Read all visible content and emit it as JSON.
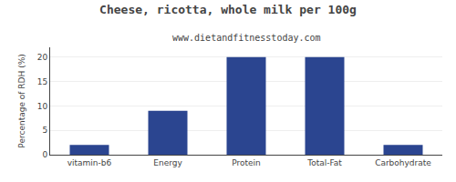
{
  "chart_data": {
    "type": "bar",
    "title": "Cheese, ricotta, whole milk per 100g",
    "subtitle": "www.dietandfitnesstoday.com",
    "categories": [
      "vitamin-b6",
      "Energy",
      "Protein",
      "Total-Fat",
      "Carbohydrate"
    ],
    "values": [
      2,
      9,
      20,
      20,
      2
    ],
    "color": "#2b4590",
    "ylabel": "Percentage of RDH (%)",
    "ylim": [
      0,
      22
    ],
    "yticks": [
      0,
      5,
      10,
      15,
      20
    ],
    "grid": true
  }
}
